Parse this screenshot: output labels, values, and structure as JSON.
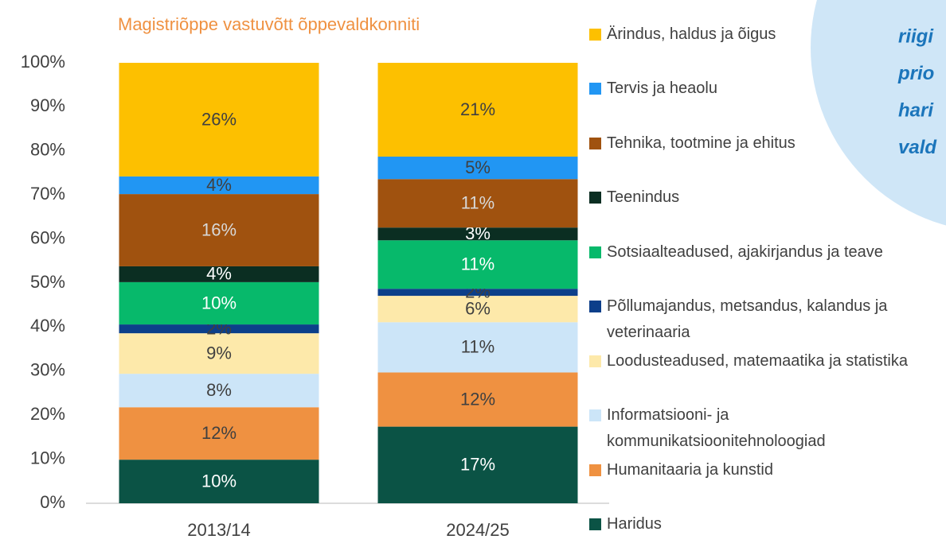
{
  "chart_data": {
    "type": "stacked_bar",
    "title": "Magistriõppe vastuvõtt õppevaldkonniti",
    "categories": [
      "2013/14",
      "2024/25"
    ],
    "ylim": [
      0,
      100
    ],
    "yticks": [
      {
        "value": 0,
        "label": "0%"
      },
      {
        "value": 10,
        "label": "10%"
      },
      {
        "value": 20,
        "label": "20%"
      },
      {
        "value": 30,
        "label": "30%"
      },
      {
        "value": 40,
        "label": "40%"
      },
      {
        "value": 50,
        "label": "50%"
      },
      {
        "value": 60,
        "label": "60%"
      },
      {
        "value": 70,
        "label": "70%"
      },
      {
        "value": 80,
        "label": "80%"
      },
      {
        "value": 90,
        "label": "90%"
      },
      {
        "value": 100,
        "label": "100%"
      }
    ],
    "legend": "right",
    "series": [
      {
        "name": "Haridus",
        "color": "#0b5345",
        "label_color": "#ffffff",
        "values": [
          9.9,
          17.4
        ],
        "value_labels": [
          "10%",
          "17%"
        ]
      },
      {
        "name": "Humanitaaria ja kunstid",
        "color": "#ef9141",
        "label_color": "#404040",
        "values": [
          11.9,
          12.3
        ],
        "value_labels": [
          "12%",
          "12%"
        ]
      },
      {
        "name": "Informatsiooni- ja kommunikatsioonitehnoloogiad",
        "color": "#cce5f8",
        "label_color": "#404040",
        "values": [
          7.6,
          11.4
        ],
        "value_labels": [
          "8%",
          "11%"
        ]
      },
      {
        "name": "Loodusteadused, matemaatika ja statistika",
        "color": "#fde9aa",
        "label_color": "#404040",
        "values": [
          9.2,
          6.0
        ],
        "value_labels": [
          "9%",
          "6%"
        ]
      },
      {
        "name": "Põllumajandus, metsandus, kalandus ja veterinaaria",
        "color": "#0c3f8a",
        "label_color": "#404040",
        "values": [
          2.0,
          1.6
        ],
        "value_labels": [
          "2%",
          "2%"
        ]
      },
      {
        "name": "Sotsiaalteadused, ajakirjandus ja teave",
        "color": "#07b96b",
        "label_color": "#ffffff",
        "values": [
          9.6,
          11.0
        ],
        "value_labels": [
          "10%",
          "11%"
        ]
      },
      {
        "name": "Teenindus",
        "color": "#0b2e22",
        "label_color": "#ffffff",
        "values": [
          3.6,
          2.9
        ],
        "value_labels": [
          "4%",
          "3%"
        ]
      },
      {
        "name": "Tehnika, tootmine ja ehitus",
        "color": "#a0520f",
        "label_color": "#d8d8d8",
        "values": [
          16.4,
          11.0
        ],
        "value_labels": [
          "16%",
          "11%"
        ]
      },
      {
        "name": "Tervis ja heaolu",
        "color": "#2196f3",
        "label_color": "#404040",
        "values": [
          4.0,
          5.1
        ],
        "value_labels": [
          "4%",
          "5%"
        ]
      },
      {
        "name": "Ärindus, haldus ja õigus",
        "color": "#fdc000",
        "label_color": "#404040",
        "values": [
          25.8,
          21.3
        ],
        "value_labels": [
          "26%",
          "21%"
        ]
      }
    ]
  },
  "sidebar": {
    "lines": [
      "riigi",
      "prio",
      "hari",
      "vald"
    ]
  }
}
